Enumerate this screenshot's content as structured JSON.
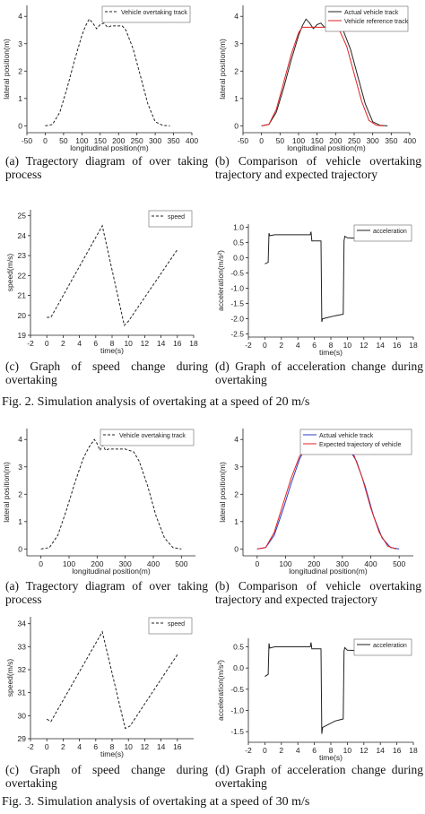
{
  "figures": [
    {
      "caption": "Fig. 2.   Simulation analysis of overtaking at a speed of 20 m/s",
      "panels": [
        {
          "caption_line1": "(a) Tragectory diagram of over taking",
          "caption_line2": "process"
        },
        {
          "caption_line1": "(b) Comparison of vehicle overtaking",
          "caption_line2": "trajectory and expected trajectory"
        },
        {
          "caption_line1": "(c) Graph of speed change during",
          "caption_line2": "overtaking"
        },
        {
          "caption_line1": "(d) Graph of acceleration change during",
          "caption_line2": "overtaking"
        }
      ]
    },
    {
      "caption": "Fig. 3.   Simulation analysis of overtaking at a speed of 30 m/s",
      "panels": [
        {
          "caption_line1": "(a) Tragectory diagram of over taking",
          "caption_line2": "process"
        },
        {
          "caption_line1": "(b) Comparison of vehicle overtaking",
          "caption_line2": "trajectory and expected trajectory"
        },
        {
          "caption_line1": "(c) Graph of speed change during",
          "caption_line2": "overtaking"
        },
        {
          "caption_line1": "(d) Graph of acceleration change during",
          "caption_line2": "overtaking"
        }
      ]
    }
  ],
  "chart_data": [
    {
      "id": "fig2a",
      "type": "line",
      "xlabel": "longitudinal position(m)",
      "ylabel": "lateral position(m)",
      "xlim": [
        -50,
        400
      ],
      "ylim": [
        -0.25,
        4.4
      ],
      "xticks": [
        -50,
        0,
        50,
        100,
        150,
        200,
        250,
        300,
        350,
        400
      ],
      "yticks": [
        0,
        1,
        2,
        3,
        4
      ],
      "legend_position": "top-right",
      "series": [
        {
          "name": "Vehicle overtaking track",
          "color": "#222222",
          "dash": "3,2",
          "x": [
            0,
            20,
            40,
            60,
            80,
            100,
            110,
            120,
            130,
            140,
            150,
            160,
            170,
            180,
            190,
            200,
            210,
            220,
            240,
            260,
            280,
            300,
            320,
            340
          ],
          "y": [
            0,
            0.05,
            0.5,
            1.4,
            2.4,
            3.3,
            3.65,
            3.9,
            3.75,
            3.55,
            3.7,
            3.75,
            3.6,
            3.65,
            3.65,
            3.65,
            3.65,
            3.5,
            2.8,
            1.8,
            0.8,
            0.15,
            0.02,
            0
          ]
        }
      ]
    },
    {
      "id": "fig2b",
      "type": "line",
      "xlabel": "longitudinal position(m)",
      "ylabel": "lateral position(m)",
      "xlim": [
        -50,
        400
      ],
      "ylim": [
        -0.25,
        4.4
      ],
      "xticks": [
        -50,
        0,
        50,
        100,
        150,
        200,
        250,
        300,
        350,
        400
      ],
      "yticks": [
        0,
        1,
        2,
        3,
        4
      ],
      "legend_position": "top-right",
      "series": [
        {
          "name": "Actual vehicle track",
          "color": "#222222",
          "dash": "",
          "x": [
            0,
            20,
            40,
            60,
            80,
            100,
            110,
            120,
            130,
            140,
            150,
            160,
            170,
            180,
            190,
            200,
            210,
            220,
            240,
            260,
            280,
            300,
            320,
            340
          ],
          "y": [
            0,
            0.05,
            0.5,
            1.4,
            2.4,
            3.3,
            3.65,
            3.9,
            3.75,
            3.55,
            3.7,
            3.75,
            3.6,
            3.65,
            3.65,
            3.65,
            3.65,
            3.5,
            2.8,
            1.8,
            0.8,
            0.15,
            0.02,
            0
          ]
        },
        {
          "name": "Vehicle reference track",
          "color": "#e02020",
          "dash": "",
          "x": [
            0,
            20,
            40,
            60,
            80,
            100,
            110,
            120,
            200,
            210,
            230,
            250,
            270,
            290,
            310,
            330
          ],
          "y": [
            0,
            0.05,
            0.6,
            1.6,
            2.6,
            3.4,
            3.6,
            3.6,
            3.6,
            3.5,
            2.9,
            1.9,
            0.9,
            0.2,
            0.02,
            0
          ]
        }
      ]
    },
    {
      "id": "fig2c",
      "type": "line",
      "xlabel": "time(s)",
      "ylabel": "speed(m/s)",
      "xlim": [
        -2,
        18
      ],
      "ylim": [
        19,
        25.3
      ],
      "xticks": [
        -2,
        0,
        2,
        4,
        6,
        8,
        10,
        12,
        14,
        16,
        18
      ],
      "yticks": [
        19,
        20,
        21,
        22,
        23,
        24,
        25
      ],
      "legend_position": "top-right",
      "series": [
        {
          "name": "speed",
          "color": "#222222",
          "dash": "3,2",
          "x": [
            0,
            0.5,
            6.8,
            9.5,
            10,
            16
          ],
          "y": [
            19.9,
            19.9,
            24.5,
            19.5,
            19.7,
            23.3
          ]
        }
      ]
    },
    {
      "id": "fig2d",
      "type": "line",
      "xlabel": "time(s)",
      "ylabel": "acceleration(m/s²)",
      "xlim": [
        -2,
        18
      ],
      "ylim": [
        -2.6,
        1.1
      ],
      "xticks": [
        -2,
        0,
        2,
        4,
        6,
        8,
        10,
        12,
        14,
        16,
        18
      ],
      "yticks": [
        -2.5,
        -2.0,
        -1.5,
        -1.0,
        -0.5,
        0.0,
        0.5,
        1.0
      ],
      "legend_position": "top-right",
      "series": [
        {
          "name": "acceleration",
          "color": "#222222",
          "dash": "",
          "x": [
            0,
            0.4,
            0.5,
            0.6,
            1.2,
            5.5,
            5.6,
            5.7,
            5.8,
            6.8,
            6.9,
            7.0,
            8.5,
            9.5,
            9.6,
            9.7,
            10,
            15.5
          ],
          "y": [
            -0.2,
            -0.15,
            0.8,
            0.72,
            0.75,
            0.75,
            0.85,
            0.55,
            0.55,
            0.55,
            -2.1,
            -2.0,
            -1.9,
            -1.85,
            0.55,
            0.7,
            0.65,
            0.58
          ]
        }
      ]
    },
    {
      "id": "fig3a",
      "type": "line",
      "xlabel": "longitudinal position(m)",
      "ylabel": "lateral position(m)",
      "xlim": [
        -50,
        550
      ],
      "ylim": [
        -0.25,
        4.4
      ],
      "xticks": [
        0,
        100,
        200,
        300,
        400,
        500
      ],
      "yticks": [
        0,
        1,
        2,
        3,
        4
      ],
      "legend_position": "top-right",
      "series": [
        {
          "name": "Vehicle overtaking track",
          "color": "#222222",
          "dash": "3,2",
          "x": [
            0,
            30,
            60,
            90,
            120,
            150,
            170,
            190,
            200,
            210,
            220,
            230,
            240,
            250,
            270,
            300,
            330,
            350,
            380,
            410,
            440,
            470,
            500
          ],
          "y": [
            0,
            0.05,
            0.5,
            1.4,
            2.4,
            3.3,
            3.7,
            4.0,
            3.85,
            3.6,
            3.8,
            3.6,
            3.65,
            3.65,
            3.65,
            3.65,
            3.55,
            3.2,
            2.3,
            1.2,
            0.4,
            0.05,
            0
          ]
        }
      ]
    },
    {
      "id": "fig3b",
      "type": "line",
      "xlabel": "longitudinal position(m)",
      "ylabel": "lateral position(m)",
      "xlim": [
        -50,
        550
      ],
      "ylim": [
        -0.25,
        4.4
      ],
      "xticks": [
        0,
        100,
        200,
        300,
        400,
        500
      ],
      "yticks": [
        0,
        1,
        2,
        3,
        4
      ],
      "legend_position": "top-right",
      "series": [
        {
          "name": "Actual vehicle track",
          "color": "#2a3fbf",
          "dash": "",
          "x": [
            0,
            30,
            60,
            90,
            120,
            150,
            170,
            190,
            200,
            210,
            220,
            230,
            240,
            250,
            270,
            300,
            330,
            350,
            380,
            410,
            440,
            470,
            500
          ],
          "y": [
            0,
            0.05,
            0.5,
            1.4,
            2.4,
            3.3,
            3.7,
            4.0,
            3.85,
            3.6,
            3.8,
            3.6,
            3.65,
            3.65,
            3.65,
            3.65,
            3.55,
            3.2,
            2.3,
            1.2,
            0.4,
            0.05,
            0
          ]
        },
        {
          "name": "Expected trajectory of vehicle",
          "color": "#e02020",
          "dash": "",
          "x": [
            0,
            30,
            60,
            90,
            120,
            150,
            170,
            180,
            330,
            340,
            370,
            400,
            430,
            460,
            490
          ],
          "y": [
            0,
            0.05,
            0.6,
            1.6,
            2.6,
            3.4,
            3.6,
            3.6,
            3.6,
            3.45,
            2.6,
            1.5,
            0.6,
            0.1,
            0
          ]
        }
      ]
    },
    {
      "id": "fig3c",
      "type": "line",
      "xlabel": "time(s)",
      "ylabel": "speed(m/s)",
      "xlim": [
        -2,
        18
      ],
      "ylim": [
        29,
        34.3
      ],
      "xticks": [
        -2,
        0,
        2,
        4,
        6,
        8,
        10,
        12,
        14,
        16
      ],
      "yticks": [
        29,
        30,
        31,
        32,
        33,
        34
      ],
      "legend_position": "top-right",
      "series": [
        {
          "name": "speed",
          "color": "#222222",
          "dash": "3,2",
          "x": [
            0,
            0.5,
            6.8,
            9.6,
            10.2,
            16
          ],
          "y": [
            29.85,
            29.75,
            33.65,
            29.45,
            29.55,
            32.65
          ]
        }
      ]
    },
    {
      "id": "fig3d",
      "type": "line",
      "xlabel": "time(s)",
      "ylabel": "acceleration(m/s²)",
      "xlim": [
        -2,
        18
      ],
      "ylim": [
        -1.75,
        0.7
      ],
      "xticks": [
        -2,
        0,
        2,
        4,
        6,
        8,
        10,
        12,
        14,
        16,
        18
      ],
      "yticks": [
        -1.5,
        -1.0,
        -0.5,
        0.0,
        0.5
      ],
      "legend_position": "top-right",
      "series": [
        {
          "name": "acceleration",
          "color": "#222222",
          "dash": "",
          "x": [
            0,
            0.4,
            0.5,
            0.6,
            1.2,
            5.5,
            5.6,
            5.7,
            5.8,
            6.8,
            6.9,
            7.0,
            8.5,
            9.5,
            9.6,
            9.7,
            10,
            16
          ],
          "y": [
            -0.2,
            -0.15,
            0.58,
            0.47,
            0.5,
            0.5,
            0.6,
            0.45,
            0.45,
            0.45,
            -1.55,
            -1.4,
            -1.25,
            -1.2,
            0.4,
            0.48,
            0.42,
            0.38
          ]
        }
      ]
    }
  ]
}
